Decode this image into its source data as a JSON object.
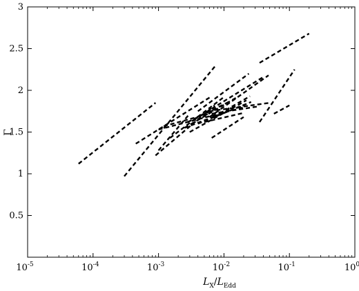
{
  "chart_data": {
    "type": "line",
    "xscale": "log",
    "xlim": [
      1e-05,
      1
    ],
    "ylim": [
      0,
      3
    ],
    "grid": false,
    "legend": "none",
    "line_style": "dashed",
    "line_color": "#000000",
    "xlabel": {
      "main": "L",
      "sub1": "X",
      "slash": "/",
      "main2": "L",
      "sub2": "Edd"
    },
    "ylabel": "Γ",
    "xticks": [
      {
        "base": "10",
        "exp": "-5",
        "value": 1e-05
      },
      {
        "base": "10",
        "exp": "-4",
        "value": 0.0001
      },
      {
        "base": "10",
        "exp": "-3",
        "value": 0.001
      },
      {
        "base": "10",
        "exp": "-2",
        "value": 0.01
      },
      {
        "base": "10",
        "exp": "-1",
        "value": 0.1
      },
      {
        "base": "10",
        "exp": "0",
        "value": 1
      }
    ],
    "yticks": [
      {
        "label": "0.5",
        "value": 0.5
      },
      {
        "label": "1",
        "value": 1
      },
      {
        "label": "1.5",
        "value": 1.5
      },
      {
        "label": "2",
        "value": 2
      },
      {
        "label": "2.5",
        "value": 2.5
      },
      {
        "label": "3",
        "value": 3
      }
    ],
    "series": [
      {
        "x": [
          6e-05,
          0.0009
        ],
        "y": [
          1.12,
          1.85
        ]
      },
      {
        "x": [
          0.0003,
          0.0075
        ],
        "y": [
          0.97,
          2.3
        ]
      },
      {
        "x": [
          0.00045,
          0.0065
        ],
        "y": [
          1.36,
          1.93
        ]
      },
      {
        "x": [
          0.0009,
          0.0072
        ],
        "y": [
          1.22,
          1.82
        ]
      },
      {
        "x": [
          0.001,
          0.003
        ],
        "y": [
          1.28,
          1.72
        ]
      },
      {
        "x": [
          0.001,
          0.021
        ],
        "y": [
          1.53,
          1.8
        ]
      },
      {
        "x": [
          0.0015,
          0.01
        ],
        "y": [
          1.43,
          1.92
        ]
      },
      {
        "x": [
          0.0012,
          0.006
        ],
        "y": [
          1.57,
          1.72
        ]
      },
      {
        "x": [
          0.0025,
          0.016
        ],
        "y": [
          1.55,
          1.92
        ]
      },
      {
        "x": [
          0.0028,
          0.0125
        ],
        "y": [
          1.62,
          1.87
        ]
      },
      {
        "x": [
          0.003,
          0.022
        ],
        "y": [
          1.5,
          1.88
        ]
      },
      {
        "x": [
          0.0025,
          0.02
        ],
        "y": [
          1.55,
          1.82
        ]
      },
      {
        "x": [
          0.004,
          0.026
        ],
        "y": [
          1.6,
          1.86
        ]
      },
      {
        "x": [
          0.005,
          0.02
        ],
        "y": [
          1.62,
          1.73
        ]
      },
      {
        "x": [
          0.0035,
          0.04
        ],
        "y": [
          1.65,
          2.16
        ]
      },
      {
        "x": [
          0.0065,
          0.02
        ],
        "y": [
          1.43,
          1.68
        ]
      },
      {
        "x": [
          0.007,
          0.025
        ],
        "y": [
          1.68,
          1.93
        ]
      },
      {
        "x": [
          0.004,
          0.024
        ],
        "y": [
          1.75,
          2.2
        ]
      },
      {
        "x": [
          0.006,
          0.048
        ],
        "y": [
          1.68,
          2.18
        ]
      },
      {
        "x": [
          0.006,
          0.05
        ],
        "y": [
          1.75,
          1.85
        ]
      },
      {
        "x": [
          0.035,
          0.12
        ],
        "y": [
          1.62,
          2.25
        ]
      },
      {
        "x": [
          0.035,
          0.2
        ],
        "y": [
          2.33,
          2.68
        ]
      },
      {
        "x": [
          0.058,
          0.1
        ],
        "y": [
          1.72,
          1.82
        ]
      },
      {
        "x": [
          0.0065,
          0.035
        ],
        "y": [
          1.72,
          1.81
        ]
      }
    ]
  }
}
